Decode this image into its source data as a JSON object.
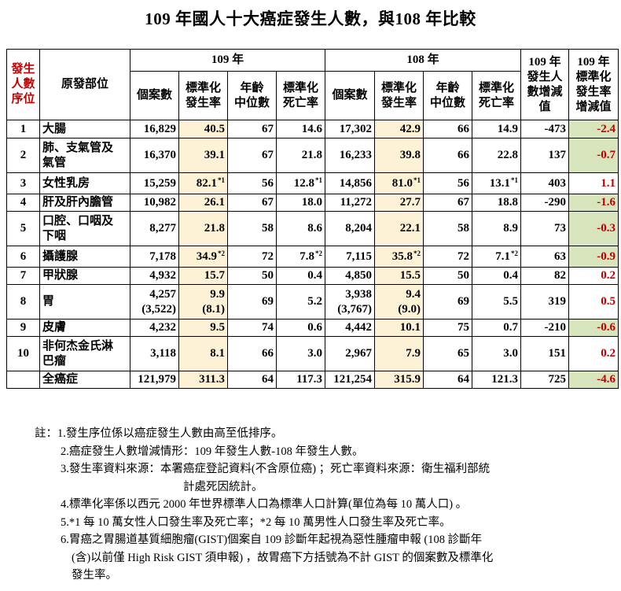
{
  "title": "109 年國人十大癌症發生人數，與108 年比較",
  "table": {
    "header": {
      "rank": "發生人數序位",
      "rank_lines": [
        "發生",
        "人數",
        "序位"
      ],
      "site": "原發部位",
      "year109": "109 年",
      "year108": "108 年",
      "diff_count_lines": [
        "109 年",
        "發生人",
        "數增減",
        "值"
      ],
      "diff_rate_lines": [
        "109 年",
        "標準化",
        "發生率",
        "增減值"
      ],
      "sub": {
        "cases": "個案數",
        "std_rate_lines": [
          "標準化",
          "發生率"
        ],
        "median_age_lines": [
          "年齡",
          "中位數"
        ],
        "mortality_lines": [
          "標準化",
          "死亡率"
        ]
      }
    },
    "rows": [
      {
        "rank": "1",
        "site_lines": [
          "大腸"
        ],
        "c109": [
          "16,829"
        ],
        "r109": [
          "40.5"
        ],
        "r109_sup": "",
        "a109": "67",
        "m109": "14.6",
        "m109_sup": "",
        "c108": [
          "17,302"
        ],
        "r108": [
          "42.9"
        ],
        "r108_sup": "",
        "a108": "66",
        "m108": "14.9",
        "m108_sup": "",
        "diff": "-473",
        "rdiff": "-2.4",
        "rdiff_neg": true
      },
      {
        "rank": "2",
        "site_lines": [
          "肺、支氣管及",
          "氣管"
        ],
        "c109": [
          "16,370"
        ],
        "r109": [
          "39.1"
        ],
        "r109_sup": "",
        "a109": "67",
        "m109": "21.8",
        "m109_sup": "",
        "c108": [
          "16,233"
        ],
        "r108": [
          "39.8"
        ],
        "r108_sup": "",
        "a108": "66",
        "m108": "22.8",
        "m108_sup": "",
        "diff": "137",
        "rdiff": "-0.7",
        "rdiff_neg": true
      },
      {
        "rank": "3",
        "site_lines": [
          "女性乳房"
        ],
        "c109": [
          "15,259"
        ],
        "r109": [
          "82.1"
        ],
        "r109_sup": "*1",
        "a109": "56",
        "m109": "12.8",
        "m109_sup": "*1",
        "c108": [
          "14,856"
        ],
        "r108": [
          "81.0"
        ],
        "r108_sup": "*1",
        "a108": "56",
        "m108": "13.1",
        "m108_sup": "*1",
        "diff": "403",
        "rdiff": "1.1",
        "rdiff_neg": false
      },
      {
        "rank": "4",
        "site_lines": [
          "肝及肝內膽管"
        ],
        "c109": [
          "10,982"
        ],
        "r109": [
          "26.1"
        ],
        "r109_sup": "",
        "a109": "67",
        "m109": "18.0",
        "m109_sup": "",
        "c108": [
          "11,272"
        ],
        "r108": [
          "27.7"
        ],
        "r108_sup": "",
        "a108": "67",
        "m108": "18.8",
        "m108_sup": "",
        "diff": "-290",
        "rdiff": "-1.6",
        "rdiff_neg": true
      },
      {
        "rank": "5",
        "site_lines": [
          "口腔、口咽及",
          "下咽"
        ],
        "c109": [
          "8,277"
        ],
        "r109": [
          "21.8"
        ],
        "r109_sup": "",
        "a109": "58",
        "m109": "8.6",
        "m109_sup": "",
        "c108": [
          "8,204"
        ],
        "r108": [
          "22.1"
        ],
        "r108_sup": "",
        "a108": "58",
        "m108": "8.9",
        "m108_sup": "",
        "diff": "73",
        "rdiff": "-0.3",
        "rdiff_neg": true
      },
      {
        "rank": "6",
        "site_lines": [
          "攝護腺"
        ],
        "c109": [
          "7,178"
        ],
        "r109": [
          "34.9"
        ],
        "r109_sup": "*2",
        "a109": "72",
        "m109": "7.8",
        "m109_sup": "*2",
        "c108": [
          "7,115"
        ],
        "r108": [
          "35.8"
        ],
        "r108_sup": "*2",
        "a108": "72",
        "m108": "7.1",
        "m108_sup": "*2",
        "diff": "63",
        "rdiff": "-0.9",
        "rdiff_neg": true
      },
      {
        "rank": "7",
        "site_lines": [
          "甲狀腺"
        ],
        "c109": [
          "4,932"
        ],
        "r109": [
          "15.7"
        ],
        "r109_sup": "",
        "a109": "50",
        "m109": "0.4",
        "m109_sup": "",
        "c108": [
          "4,850"
        ],
        "r108": [
          "15.5"
        ],
        "r108_sup": "",
        "a108": "50",
        "m108": "0.4",
        "m108_sup": "",
        "diff": "82",
        "rdiff": "0.2",
        "rdiff_neg": false
      },
      {
        "rank": "8",
        "site_lines": [
          "胃"
        ],
        "c109": [
          "4,257",
          "(3,522)"
        ],
        "r109": [
          "9.9",
          "(8.1)"
        ],
        "r109_sup": "",
        "a109": "69",
        "m109": "5.2",
        "m109_sup": "",
        "c108": [
          "3,938",
          "(3,767)"
        ],
        "r108": [
          "9.4",
          "(9.0)"
        ],
        "r108_sup": "",
        "a108": "69",
        "m108": "5.5",
        "m108_sup": "",
        "diff": "319",
        "rdiff": "0.5",
        "rdiff_neg": false
      },
      {
        "rank": "9",
        "site_lines": [
          "皮膚"
        ],
        "c109": [
          "4,232"
        ],
        "r109": [
          "9.5"
        ],
        "r109_sup": "",
        "a109": "74",
        "m109": "0.6",
        "m109_sup": "",
        "c108": [
          "4,442"
        ],
        "r108": [
          "10.1"
        ],
        "r108_sup": "",
        "a108": "75",
        "m108": "0.7",
        "m108_sup": "",
        "diff": "-210",
        "rdiff": "-0.6",
        "rdiff_neg": true
      },
      {
        "rank": "10",
        "site_lines": [
          "非何杰金氏淋",
          "巴瘤"
        ],
        "c109": [
          "3,118"
        ],
        "r109": [
          "8.1"
        ],
        "r109_sup": "",
        "a109": "66",
        "m109": "3.0",
        "m109_sup": "",
        "c108": [
          "2,967"
        ],
        "r108": [
          "7.9"
        ],
        "r108_sup": "",
        "a108": "65",
        "m108": "3.0",
        "m108_sup": "",
        "diff": "151",
        "rdiff": "0.2",
        "rdiff_neg": false
      },
      {
        "rank": "",
        "site_lines": [
          "全癌症"
        ],
        "c109": [
          "121,979"
        ],
        "r109": [
          "311.3"
        ],
        "r109_sup": "",
        "a109": "64",
        "m109": "117.3",
        "m109_sup": "",
        "c108": [
          "121,254"
        ],
        "r108": [
          "315.9"
        ],
        "r108_sup": "",
        "a108": "64",
        "m108": "121.3",
        "m108_sup": "",
        "diff": "725",
        "rdiff": "-4.6",
        "rdiff_neg": true
      }
    ]
  },
  "notes": {
    "prefix": "註：",
    "lines": [
      "1.發生序位係以癌症發生人數由高至低排序。",
      "2.癌症發生人數增減情形：109 年發生人數-108 年發生人數。",
      "3.發生率資料來源：本署癌症登記資料(不含原位癌) ；死亡率資料來源：衛生福利部統",
      "計處死因統計。",
      "4.標準化率係以西元 2000 年世界標準人口為標準人口計算(單位為每 10 萬人口) 。",
      "5.*1 每 10 萬女性人口發生率及死亡率；*2 每 10 萬男性人口發生率及死亡率。",
      "6.胃癌之胃腸道基質細胞瘤(GIST)個案自 109 診斷年起視為惡性腫瘤申報 (108 診斷年",
      "(含)以前僅 High Risk GIST 須申報) ，故胃癌下方括號為不計 GIST 的個案數及標準化",
      "發生率。"
    ]
  },
  "colors": {
    "highlight_rate": "#fdf2d6",
    "highlight_negative": "#d8e4bc",
    "accent_red": "#c00000"
  }
}
